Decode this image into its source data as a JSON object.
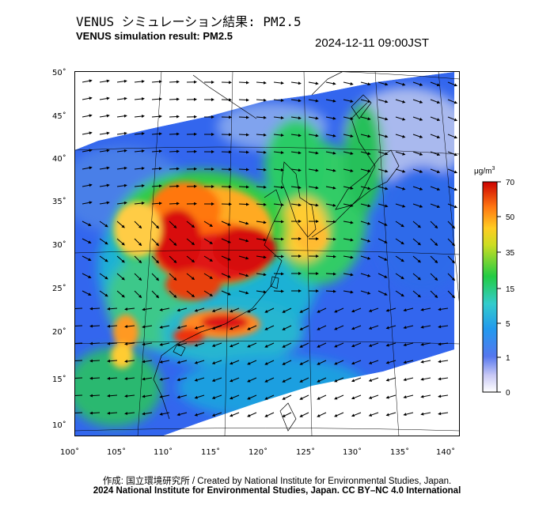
{
  "header": {
    "title_jp": "VENUS シミュレーション結果: PM2.5",
    "title_en": "VENUS simulation result: PM2.5",
    "timestamp": "2024-12-11 09:00JST"
  },
  "map": {
    "lon_ticks": [
      "100˚",
      "105˚",
      "110˚",
      "115˚",
      "120˚",
      "125˚",
      "130˚",
      "135˚",
      "140˚"
    ],
    "lat_ticks": [
      "50˚",
      "45˚",
      "40˚",
      "35˚",
      "30˚",
      "25˚",
      "20˚",
      "15˚",
      "10˚"
    ],
    "lon_range": [
      100,
      142
    ],
    "lat_range": [
      9,
      51
    ],
    "field": "PM2.5 concentration with wind vectors",
    "hotspot_description_regions": [
      "central-east China",
      "northern Vietnam / Gulf of Tonkin"
    ]
  },
  "colorbar": {
    "unit": "μg/m",
    "unit_sup": "3",
    "tick_labels": [
      "70",
      "50",
      "35",
      "15",
      "5",
      "1",
      "0"
    ],
    "colors": [
      "#cc0000",
      "#ff7f00",
      "#ffd700",
      "#22cc22",
      "#33cccc",
      "#3377ee",
      "#ffffff"
    ]
  },
  "footer": {
    "credit": "作成: 国立環境研究所 / Created by National Institute for Environmental Studies, Japan.",
    "copyright": "2024 National Institute for Environmental Studies, Japan. CC BY–NC 4.0 International"
  }
}
